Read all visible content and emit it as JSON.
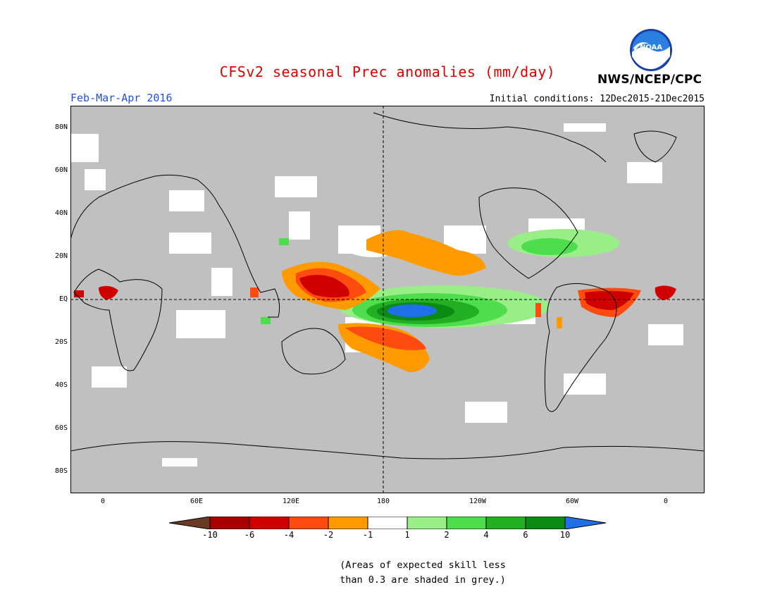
{
  "title": "CFSv2 seasonal Prec anomalies (mm/day)",
  "period": "Feb-Mar-Apr 2016",
  "initial_conditions": "Initial conditions: 12Dec2015-21Dec2015",
  "agency": "NWS/NCEP/CPC",
  "logo_text": "NOAA",
  "lat_labels": [
    "80N",
    "60N",
    "40N",
    "20N",
    "EQ",
    "20S",
    "40S",
    "60S",
    "80S"
  ],
  "lon_labels": [
    "0",
    "60E",
    "120E",
    "180",
    "120W",
    "60W",
    "0"
  ],
  "colorbar": {
    "labels": [
      "-10",
      "-6",
      "-4",
      "-2",
      "-1",
      "1",
      "2",
      "4",
      "6",
      "10"
    ],
    "colors": [
      "#6b3a22",
      "#a80000",
      "#d00000",
      "#ff4a10",
      "#ff9a00",
      "#ffffff",
      "#99ee88",
      "#4ddd4d",
      "#22b022",
      "#0b8a14",
      "#1f6fe8"
    ]
  },
  "note_line1": "(Areas of expected skill less",
  "note_line2": "than 0.3 are shaded in grey.)"
}
